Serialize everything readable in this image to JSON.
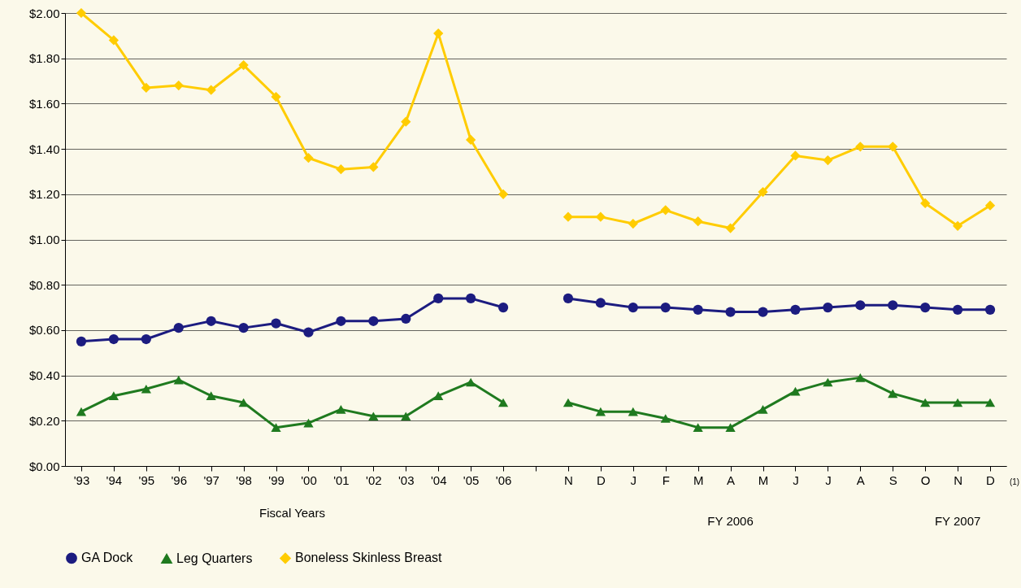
{
  "chart_data": {
    "type": "line",
    "categories": [
      "'93",
      "'94",
      "'95",
      "'96",
      "'97",
      "'98",
      "'99",
      "'00",
      "'01",
      "'02",
      "'03",
      "'04",
      "'05",
      "'06",
      null,
      "N",
      "D",
      "J",
      "F",
      "M",
      "A",
      "M",
      "J",
      "J",
      "A",
      "S",
      "O",
      "N",
      "D"
    ],
    "series": [
      {
        "name": "GA Dock",
        "color": "#1c1c80",
        "marker": "circle",
        "values": [
          0.55,
          0.56,
          0.56,
          0.61,
          0.64,
          0.61,
          0.63,
          0.59,
          0.64,
          0.64,
          0.65,
          0.74,
          0.74,
          0.7,
          null,
          0.74,
          0.72,
          0.7,
          0.7,
          0.69,
          0.68,
          0.68,
          0.69,
          0.7,
          0.71,
          0.71,
          0.7,
          0.69,
          0.69
        ]
      },
      {
        "name": "Leg Quarters",
        "color": "#1f7a1f",
        "marker": "triangle",
        "values": [
          0.24,
          0.31,
          0.34,
          0.38,
          0.31,
          0.28,
          0.17,
          0.19,
          0.25,
          0.22,
          0.22,
          0.31,
          0.37,
          0.28,
          null,
          0.28,
          0.24,
          0.24,
          0.21,
          0.17,
          0.17,
          0.25,
          0.33,
          0.37,
          0.39,
          0.32,
          0.28,
          0.28,
          0.28
        ]
      },
      {
        "name": "Boneless Skinless Breast",
        "color": "#ffcc00",
        "marker": "diamond",
        "values": [
          2.0,
          1.88,
          1.67,
          1.68,
          1.66,
          1.77,
          1.63,
          1.36,
          1.31,
          1.32,
          1.52,
          1.91,
          1.44,
          1.2,
          null,
          1.1,
          1.1,
          1.07,
          1.13,
          1.08,
          1.05,
          1.21,
          1.37,
          1.35,
          1.41,
          1.41,
          1.16,
          1.06,
          1.15
        ]
      }
    ],
    "ylim": [
      0,
      2
    ],
    "yticks": [
      {
        "value": 0,
        "label": "$0.00"
      },
      {
        "value": 0.2,
        "label": "$0.20"
      },
      {
        "value": 0.4,
        "label": "$0.40"
      },
      {
        "value": 0.6,
        "label": "$0.60"
      },
      {
        "value": 0.8,
        "label": "$0.80"
      },
      {
        "value": 1,
        "label": "$1.00"
      },
      {
        "value": 1.2,
        "label": "$1.20"
      },
      {
        "value": 1.4,
        "label": "$1.40"
      },
      {
        "value": 1.6,
        "label": "$1.60"
      },
      {
        "value": 1.8,
        "label": "$1.80"
      },
      {
        "value": 2,
        "label": "$2.00"
      }
    ],
    "grid": "y",
    "legend": "bottom",
    "line_style": "solid",
    "annotations": [
      "Fiscal Years",
      "FY 2006",
      "FY 2007",
      "(1)"
    ]
  }
}
